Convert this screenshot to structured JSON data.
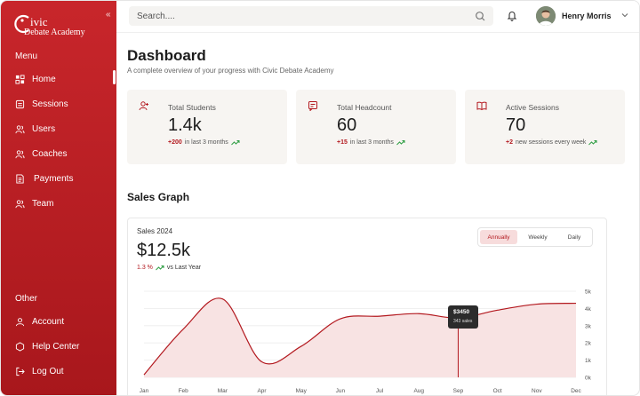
{
  "app": {
    "logo_line1": "ivic",
    "logo_line2": "Debate Academy",
    "collapse_glyph": "«"
  },
  "sidebar": {
    "menu_label": "Menu",
    "items": [
      {
        "label": "Home",
        "icon": "home-icon"
      },
      {
        "label": "Sessions",
        "icon": "sessions-icon"
      },
      {
        "label": "Users",
        "icon": "users-icon"
      },
      {
        "label": "Coaches",
        "icon": "coaches-icon"
      },
      {
        "label": "Payments",
        "icon": "payments-icon"
      },
      {
        "label": "Team",
        "icon": "team-icon"
      }
    ],
    "other_label": "Other",
    "other_items": [
      {
        "label": "Account",
        "icon": "account-icon"
      },
      {
        "label": "Help Center",
        "icon": "help-icon"
      },
      {
        "label": "Log Out",
        "icon": "logout-icon"
      }
    ]
  },
  "topbar": {
    "search_placeholder": "Search....",
    "user_name": "Henry Morris"
  },
  "page": {
    "title": "Dashboard",
    "subtitle": "A complete overview of your progress with Civic Debate Academy"
  },
  "cards": [
    {
      "label": "Total Students",
      "value": "1.4k",
      "delta": "+200",
      "delta_text": "in last 3 months"
    },
    {
      "label": "Total Headcount",
      "value": "60",
      "delta": "+15",
      "delta_text": "in last 3 months"
    },
    {
      "label": "Active Sessions",
      "value": "70",
      "delta": "+2",
      "delta_text": "new sessions every week"
    }
  ],
  "sales": {
    "section_title": "Sales Graph",
    "label": "Sales 2024",
    "value": "$12.5k",
    "delta": "1.3 %",
    "delta_text": "vs Last Year",
    "tabs": [
      "Annually",
      "Weekly",
      "Daily"
    ],
    "active_tab": "Annually",
    "tooltip_value": "$3450",
    "tooltip_sub": "343 sales"
  },
  "colors": {
    "accent": "#b3191f",
    "sidebar": "#c8262b",
    "positive": "#2f9e44"
  },
  "chart_data": {
    "type": "area",
    "categories": [
      "Jan",
      "Feb",
      "Mar",
      "Apr",
      "May",
      "Jun",
      "Jul",
      "Aug",
      "Sep",
      "Oct",
      "Nov",
      "Dec"
    ],
    "values": [
      150,
      2800,
      4550,
      900,
      1800,
      3400,
      3550,
      3700,
      3450,
      3900,
      4250,
      4300
    ],
    "yticks": [
      "0k",
      "1k",
      "2k",
      "3k",
      "4k",
      "5k"
    ],
    "ylim": [
      0,
      5000
    ],
    "highlight_index": 8,
    "grid": true
  }
}
